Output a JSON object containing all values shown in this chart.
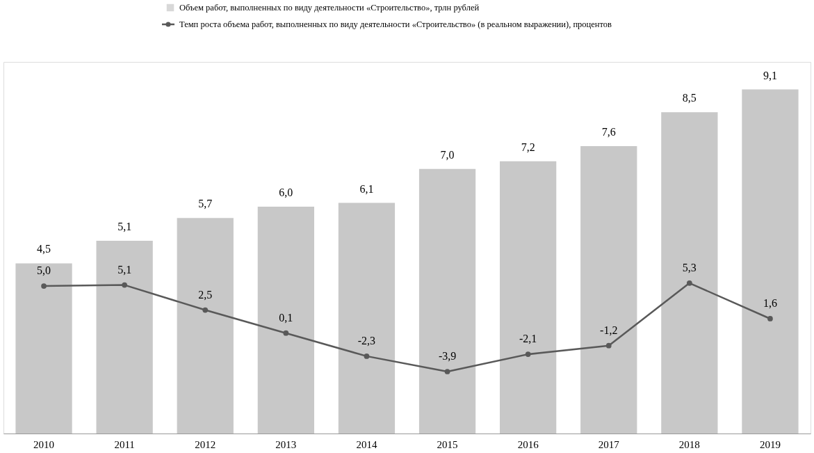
{
  "chart_data": {
    "type": "bar",
    "categories": [
      "2010",
      "2011",
      "2012",
      "2013",
      "2014",
      "2015",
      "2016",
      "2017",
      "2018",
      "2019"
    ],
    "series": [
      {
        "name": "Объем работ, выполненных по виду деятельности «Строительство», трлн рублей",
        "color": "#c8c8c8",
        "values": [
          4.5,
          5.1,
          5.7,
          6.0,
          6.1,
          7.0,
          7.2,
          7.6,
          8.5,
          9.1
        ],
        "value_labels": [
          "4,5",
          "5,1",
          "5,7",
          "6,0",
          "6,1",
          "7,0",
          "7,2",
          "7,6",
          "8,5",
          "9,1"
        ]
      },
      {
        "name": "Темп роста объема работ, выполненных по виду деятельности «Строительство» (в реальном выражении), процентов",
        "type": "line",
        "axis": "y2",
        "color": "#595959",
        "marker": "circle",
        "values": [
          5.0,
          5.1,
          2.5,
          0.1,
          -2.3,
          -3.9,
          -2.1,
          -1.2,
          5.3,
          1.6
        ],
        "value_labels": [
          "5,0",
          "5,1",
          "2,5",
          "0,1",
          "-2,3",
          "-3,9",
          "-2,1",
          "-1,2",
          "5,3",
          "1,6"
        ]
      }
    ],
    "legend": "top",
    "grid": false,
    "tick_labels": "x"
  }
}
